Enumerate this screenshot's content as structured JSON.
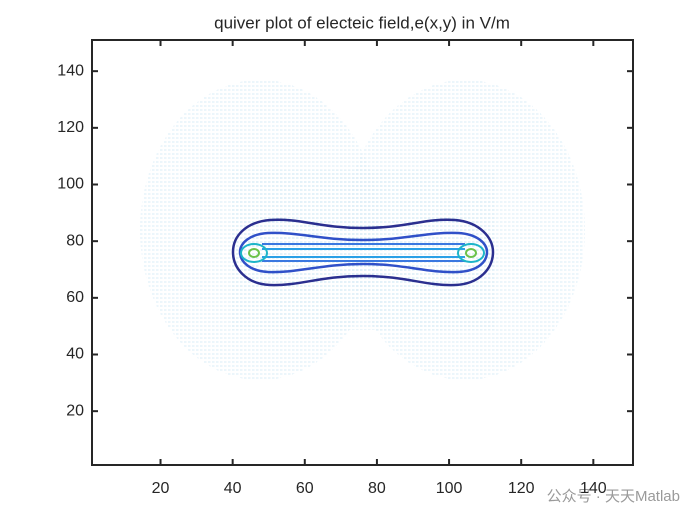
{
  "chart_data": {
    "type": "quiver",
    "title": "quiver plot of electeic field,e(x,y) in V/m",
    "xlim": [
      1,
      151
    ],
    "ylim": [
      1,
      151
    ],
    "xticks": [
      20,
      40,
      60,
      80,
      100,
      120,
      140
    ],
    "yticks": [
      20,
      40,
      60,
      80,
      100,
      120,
      140
    ],
    "grid": false
  },
  "watermark": "公众号 · 天天Matlab"
}
